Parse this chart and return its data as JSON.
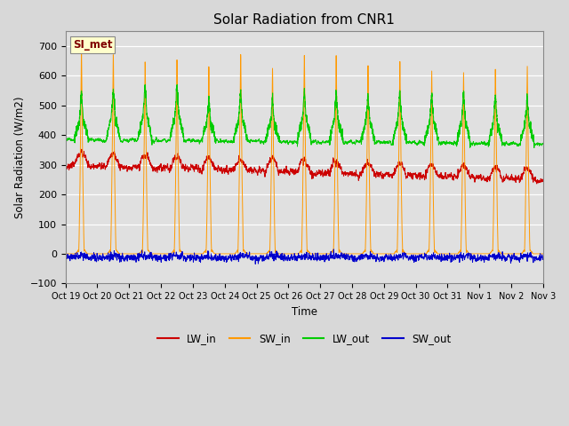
{
  "title": "Solar Radiation from CNR1",
  "xlabel": "Time",
  "ylabel": "Solar Radiation (W/m2)",
  "ylim": [
    -100,
    750
  ],
  "yticks": [
    -100,
    0,
    100,
    200,
    300,
    400,
    500,
    600,
    700
  ],
  "fig_bg_color": "#d8d8d8",
  "plot_bg_color": "#e0e0e0",
  "legend_label": "SI_met",
  "legend_entries": [
    "LW_in",
    "SW_in",
    "LW_out",
    "SW_out"
  ],
  "line_colors": {
    "LW_in": "#cc0000",
    "SW_in": "#ff9900",
    "LW_out": "#00cc00",
    "SW_out": "#0000cc"
  },
  "n_days": 15,
  "date_labels": [
    "Oct 19",
    "Oct 20",
    "Oct 21",
    "Oct 22",
    "Oct 23",
    "Oct 24",
    "Oct 25",
    "Oct 26",
    "Oct 27",
    "Oct 28",
    "Oct 29",
    "Oct 30",
    "Oct 31",
    "Nov 1",
    "Nov 2",
    "Nov 3"
  ]
}
